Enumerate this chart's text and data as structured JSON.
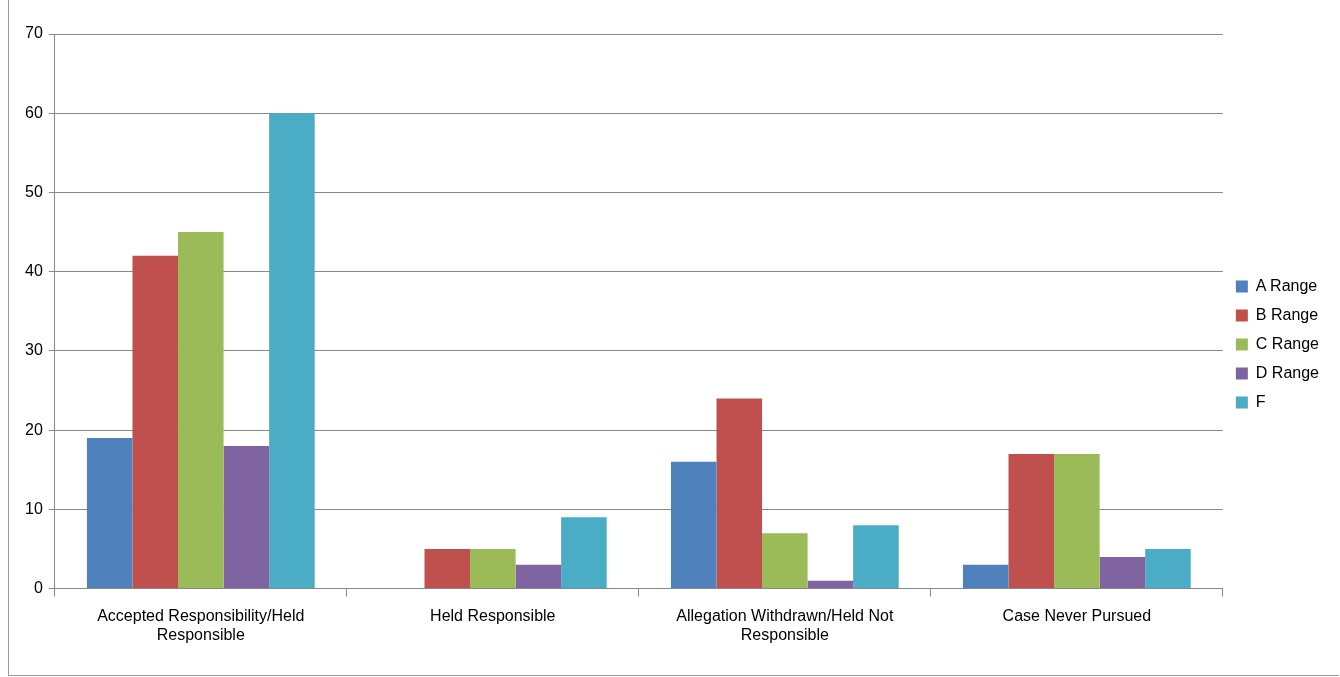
{
  "chart_data": {
    "type": "bar",
    "categories": [
      "Accepted Responsibility/Held Responsible",
      "Held Responsible",
      "Allegation Withdrawn/Held Not Responsible",
      "Case Never Pursued"
    ],
    "series": [
      {
        "name": "A Range",
        "color": "#4f81bd",
        "values": [
          19,
          0,
          16,
          3
        ]
      },
      {
        "name": "B Range",
        "color": "#c0504d",
        "values": [
          42,
          5,
          24,
          17
        ]
      },
      {
        "name": "C Range",
        "color": "#9bbb59",
        "values": [
          45,
          5,
          7,
          17
        ]
      },
      {
        "name": "D Range",
        "color": "#8064a2",
        "values": [
          18,
          3,
          1,
          4
        ]
      },
      {
        "name": "F",
        "color": "#4bacc6",
        "values": [
          60,
          9,
          8,
          5
        ]
      }
    ],
    "ylim": [
      0,
      70
    ],
    "yticks": [
      0,
      10,
      20,
      30,
      40,
      50,
      60,
      70
    ],
    "grid": "y",
    "legend": "right"
  }
}
